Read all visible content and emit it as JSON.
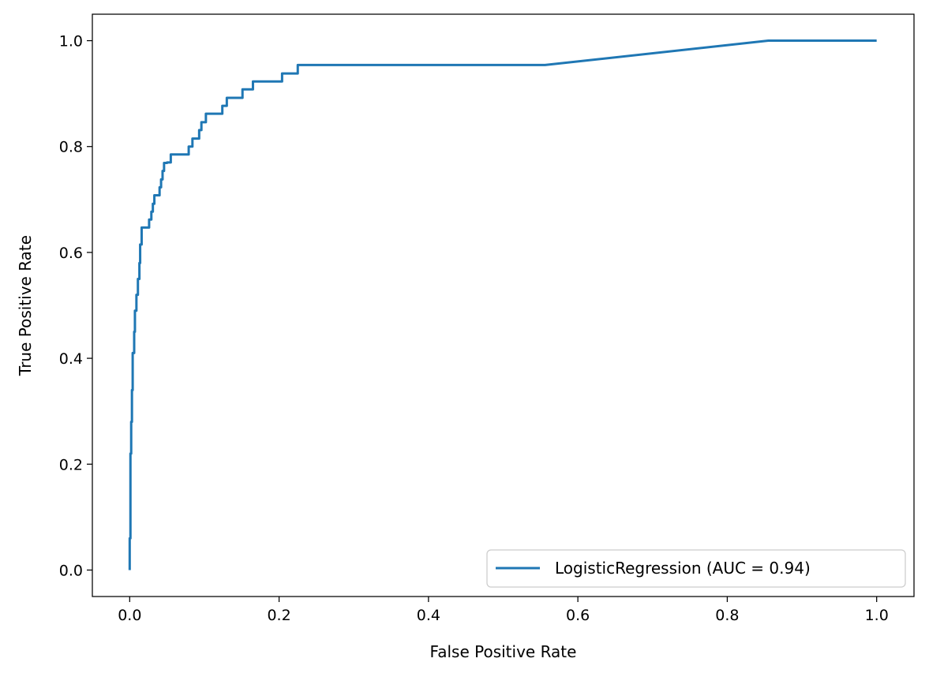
{
  "chart_data": {
    "type": "line",
    "xlabel": "False Positive Rate",
    "ylabel": "True Positive Rate",
    "xlim": [
      -0.05,
      1.05
    ],
    "ylim": [
      -0.05,
      1.05
    ],
    "x_ticks": [
      {
        "value": 0.0,
        "label": "0.0"
      },
      {
        "value": 0.2,
        "label": "0.2"
      },
      {
        "value": 0.4,
        "label": "0.4"
      },
      {
        "value": 0.6,
        "label": "0.6"
      },
      {
        "value": 0.8,
        "label": "0.8"
      },
      {
        "value": 1.0,
        "label": "1.0"
      }
    ],
    "y_ticks": [
      {
        "value": 0.0,
        "label": "0.0"
      },
      {
        "value": 0.2,
        "label": "0.2"
      },
      {
        "value": 0.4,
        "label": "0.4"
      },
      {
        "value": 0.6,
        "label": "0.6"
      },
      {
        "value": 0.8,
        "label": "0.8"
      },
      {
        "value": 1.0,
        "label": "1.0"
      }
    ],
    "grid": false,
    "legend_placement": "lower-right",
    "series": [
      {
        "name": "LogisticRegression (AUC = 0.94)",
        "color": "#1f77b4",
        "points": [
          [
            0.0,
            0.0
          ],
          [
            0.0,
            0.06
          ],
          [
            0.001,
            0.06
          ],
          [
            0.001,
            0.14
          ],
          [
            0.001,
            0.22
          ],
          [
            0.002,
            0.22
          ],
          [
            0.002,
            0.28
          ],
          [
            0.003,
            0.28
          ],
          [
            0.003,
            0.34
          ],
          [
            0.004,
            0.34
          ],
          [
            0.004,
            0.41
          ],
          [
            0.006,
            0.41
          ],
          [
            0.006,
            0.45
          ],
          [
            0.007,
            0.45
          ],
          [
            0.007,
            0.49
          ],
          [
            0.009,
            0.49
          ],
          [
            0.009,
            0.52
          ],
          [
            0.011,
            0.52
          ],
          [
            0.011,
            0.55
          ],
          [
            0.013,
            0.55
          ],
          [
            0.013,
            0.58
          ],
          [
            0.014,
            0.58
          ],
          [
            0.014,
            0.615
          ],
          [
            0.016,
            0.615
          ],
          [
            0.016,
            0.647
          ],
          [
            0.026,
            0.647
          ],
          [
            0.026,
            0.662
          ],
          [
            0.029,
            0.662
          ],
          [
            0.029,
            0.677
          ],
          [
            0.031,
            0.677
          ],
          [
            0.031,
            0.692
          ],
          [
            0.033,
            0.692
          ],
          [
            0.033,
            0.708
          ],
          [
            0.04,
            0.708
          ],
          [
            0.04,
            0.723
          ],
          [
            0.042,
            0.723
          ],
          [
            0.042,
            0.738
          ],
          [
            0.044,
            0.738
          ],
          [
            0.044,
            0.754
          ],
          [
            0.046,
            0.754
          ],
          [
            0.046,
            0.769
          ],
          [
            0.05,
            0.769
          ],
          [
            0.05,
            0.77
          ],
          [
            0.055,
            0.77
          ],
          [
            0.055,
            0.785
          ],
          [
            0.079,
            0.785
          ],
          [
            0.079,
            0.8
          ],
          [
            0.084,
            0.8
          ],
          [
            0.084,
            0.815
          ],
          [
            0.093,
            0.815
          ],
          [
            0.093,
            0.831
          ],
          [
            0.096,
            0.831
          ],
          [
            0.096,
            0.846
          ],
          [
            0.102,
            0.846
          ],
          [
            0.102,
            0.862
          ],
          [
            0.124,
            0.862
          ],
          [
            0.124,
            0.877
          ],
          [
            0.13,
            0.877
          ],
          [
            0.13,
            0.892
          ],
          [
            0.151,
            0.892
          ],
          [
            0.151,
            0.908
          ],
          [
            0.165,
            0.908
          ],
          [
            0.165,
            0.923
          ],
          [
            0.204,
            0.923
          ],
          [
            0.204,
            0.938
          ],
          [
            0.225,
            0.938
          ],
          [
            0.225,
            0.954
          ],
          [
            0.556,
            0.954
          ],
          [
            0.855,
            1.0
          ],
          [
            1.0,
            1.0
          ]
        ]
      }
    ]
  }
}
